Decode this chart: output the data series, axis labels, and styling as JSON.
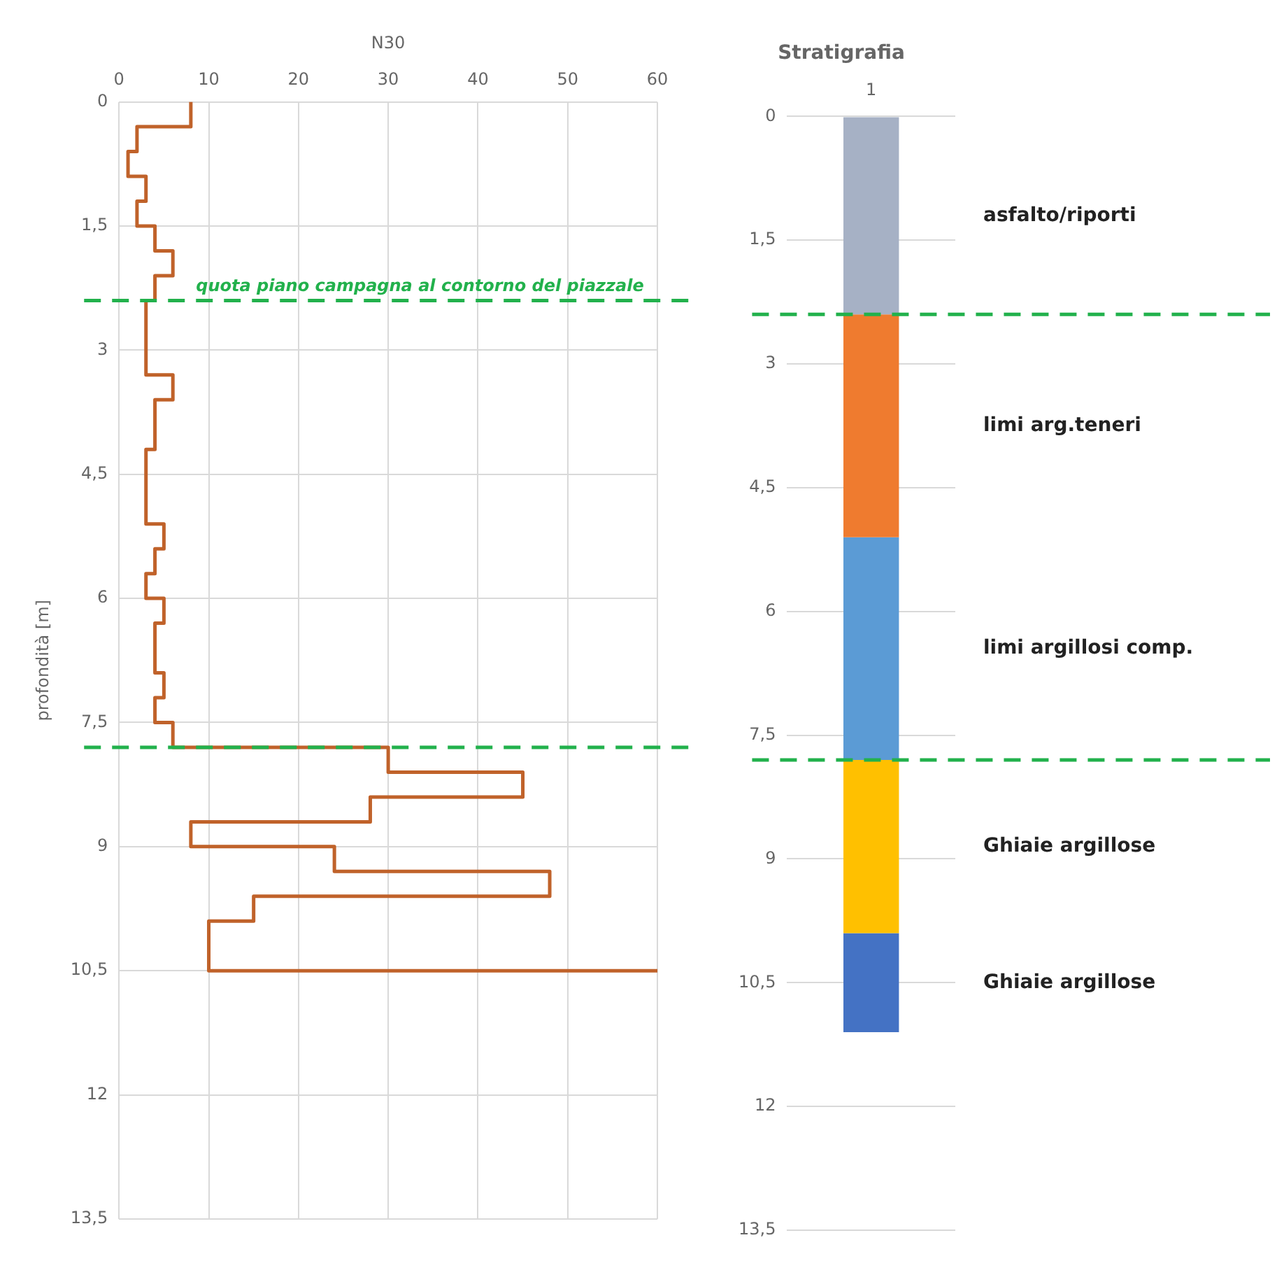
{
  "chart_data": [
    {
      "type": "step",
      "orientation": "horizontal",
      "xlabel": "N30",
      "ylabel": "profondità [m]",
      "color": "#c0622a",
      "x": [
        0,
        0.3,
        0.6,
        0.9,
        1.2,
        1.5,
        1.8,
        2.1,
        2.4,
        2.7,
        3.0,
        3.3,
        3.6,
        3.9,
        4.2,
        4.5,
        4.8,
        5.1,
        5.4,
        5.7,
        6.0,
        6.3,
        6.6,
        6.9,
        7.2,
        7.5,
        7.8,
        8.1,
        8.4,
        8.7,
        9.0,
        9.3,
        9.6,
        9.9,
        10.2,
        10.5
      ],
      "values": [
        8,
        2,
        1,
        3,
        2,
        4,
        6,
        4,
        3,
        3,
        3,
        6,
        4,
        4,
        3,
        3,
        3,
        5,
        4,
        3,
        5,
        4,
        4,
        5,
        4,
        6,
        30,
        45,
        28,
        8,
        24,
        48,
        15,
        10,
        10,
        60
      ],
      "xlim": [
        0,
        60
      ],
      "xticks": [
        0,
        10,
        20,
        30,
        40,
        50,
        60
      ],
      "ylim": [
        13.5,
        0
      ],
      "yticks": [
        0,
        {
          "value": 1.5,
          "label": "1,5"
        },
        3,
        {
          "value": 4.5,
          "label": "4,5"
        },
        6,
        {
          "value": 7.5,
          "label": "7,5"
        },
        9,
        {
          "value": 10.5,
          "label": "10,5"
        },
        12,
        {
          "value": 13.5,
          "label": "13,5"
        }
      ],
      "grid": true,
      "legend": false,
      "ref_lines": [
        {
          "axis": "y",
          "value": 2.4,
          "label": "quota piano campagna al contorno del piazzale",
          "color": "#22b14c",
          "line_style": "dashed"
        },
        {
          "axis": "y",
          "value": 7.8,
          "label": null,
          "color": "#22b14c",
          "line_style": "dashed"
        }
      ]
    },
    {
      "type": "bar",
      "stacked": true,
      "title": "Stratigrafia",
      "categories": [
        "1"
      ],
      "series": [
        {
          "name": "asfalto/riporti",
          "color": "#a6b1c5",
          "values": [
            2.4
          ]
        },
        {
          "name": "limi arg.teneri",
          "color": "#ef7b2f",
          "values": [
            2.7
          ]
        },
        {
          "name": "limi argillosi comp.",
          "color": "#5b9bd5",
          "values": [
            2.7
          ]
        },
        {
          "name": "Ghiaie argillose",
          "color": "#ffc000",
          "values": [
            2.1
          ]
        },
        {
          "name": "Ghiaie argillose",
          "color": "#4472c4",
          "values": [
            1.2
          ]
        }
      ],
      "ylim": [
        13.5,
        0
      ],
      "yticks": [
        0,
        {
          "value": 1.5,
          "label": "1,5"
        },
        3,
        {
          "value": 4.5,
          "label": "4,5"
        },
        6,
        {
          "value": 7.5,
          "label": "7,5"
        },
        9,
        {
          "value": 10.5,
          "label": "10,5"
        },
        12,
        {
          "value": 13.5,
          "label": "13,5"
        }
      ],
      "grid": "y",
      "legend": false,
      "ref_lines": [
        {
          "axis": "y",
          "value": 2.4,
          "label": null,
          "color": "#22b14c",
          "line_style": "dashed"
        },
        {
          "axis": "y",
          "value": 7.8,
          "label": null,
          "color": "#22b14c",
          "line_style": "dashed"
        }
      ]
    }
  ]
}
